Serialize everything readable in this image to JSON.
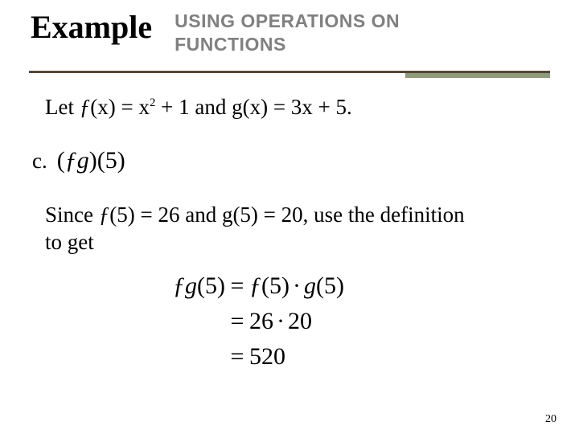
{
  "header": {
    "title": "Example",
    "subtitle_line1": "USING OPERATIONS ON",
    "subtitle_line2": "FUNCTIONS"
  },
  "colors": {
    "divider_main": "#554636",
    "divider_accent": "#8f9c7b",
    "subtitle_gray": "#808080",
    "text": "#000000",
    "background": "#ffffff"
  },
  "let": {
    "prefix": "Let ",
    "f": "ƒ",
    "fx": "(x) = x",
    "exp": "2",
    "mid": " + 1 and g(x) = 3x + 5."
  },
  "part": {
    "label": "c.",
    "lparen": "(",
    "fg_f": "ƒ",
    "fg_g": "g",
    "rparen": ")",
    "arg_l": "(",
    "arg": "5",
    "arg_r": ")"
  },
  "since": {
    "prefix": "Since ",
    "f": "ƒ",
    "f5": "(5) = 26 and g(5) = 20, use the definition",
    "line2": "to get"
  },
  "eq": {
    "row1_left_f": "ƒ",
    "row1_left_g": "g",
    "row1_left_l": "(",
    "row1_left_r": ")",
    "row1_left_arg": "5",
    "row1_eq": "=",
    "row1_right_f": "ƒ",
    "row1_right_l1": "(",
    "row1_right_a1": "5",
    "row1_right_r1": ")",
    "row1_right_dot": "·",
    "row1_right_g": "g",
    "row1_right_l2": "(",
    "row1_right_a2": "5",
    "row1_right_r2": ")",
    "row2_eq": "=",
    "row2_right_a": "26",
    "row2_right_dot": "·",
    "row2_right_b": "20",
    "row3_eq": "=",
    "row3_right": "520"
  },
  "page_number": "20"
}
